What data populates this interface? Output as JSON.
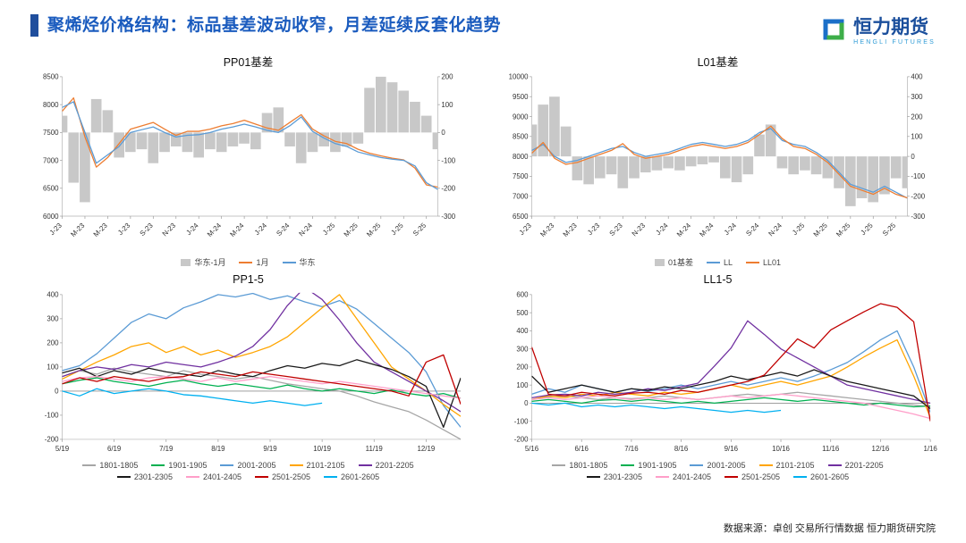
{
  "header": {
    "title": "聚烯烃价格结构：标品基差波动收窄，月差延续反套化趋势",
    "logo": {
      "name": "恒力期货",
      "subtitle": "HENGLI FUTURES"
    }
  },
  "footer": {
    "source": "数据来源：卓创  交易所行情数据  恒力期货研究院"
  },
  "chart_data": [
    {
      "type": "bar+line",
      "title": "PP01基差",
      "x_labels": [
        "J-23",
        "M-23",
        "M-23",
        "J-23",
        "S-23",
        "N-23",
        "J-24",
        "M-24",
        "M-24",
        "J-24",
        "S-24",
        "N-24",
        "J-25",
        "M-25",
        "M-25",
        "J-25",
        "S-25"
      ],
      "x_label_step": 2,
      "rotate_x_labels": true,
      "left_axis": {
        "min": 6000,
        "max": 8500,
        "step": 500
      },
      "right_axis": {
        "min": -300,
        "max": 200,
        "step": 100
      },
      "bar_series": {
        "name": "华东-1月",
        "color": "#C8C8C8",
        "axis": "right",
        "values": [
          60,
          -180,
          -250,
          120,
          80,
          -90,
          -70,
          -60,
          -110,
          -70,
          -50,
          -70,
          -90,
          -60,
          -70,
          -50,
          -40,
          -60,
          70,
          90,
          -50,
          -110,
          -70,
          -50,
          -70,
          -50,
          -40,
          160,
          200,
          180,
          150,
          110,
          60,
          -60
        ]
      },
      "series": [
        {
          "name": "1月",
          "color": "#ED7D31",
          "axis": "left",
          "values": [
            7880,
            8120,
            7420,
            6880,
            7050,
            7300,
            7560,
            7620,
            7680,
            7560,
            7450,
            7520,
            7520,
            7560,
            7620,
            7660,
            7720,
            7650,
            7580,
            7540,
            7680,
            7820,
            7560,
            7440,
            7340,
            7300,
            7200,
            7130,
            7080,
            7040,
            7010,
            6860,
            6560,
            6520
          ]
        },
        {
          "name": "华东",
          "color": "#5B9BD5",
          "axis": "left",
          "values": [
            7950,
            8050,
            7500,
            6950,
            7100,
            7250,
            7500,
            7550,
            7600,
            7500,
            7420,
            7450,
            7460,
            7500,
            7560,
            7600,
            7650,
            7600,
            7540,
            7500,
            7620,
            7780,
            7520,
            7400,
            7300,
            7250,
            7150,
            7100,
            7050,
            7020,
            7000,
            6900,
            6600,
            6480
          ]
        }
      ]
    },
    {
      "type": "bar+line",
      "title": "L01基差",
      "x_labels": [
        "J-23",
        "M-23",
        "M-23",
        "J-23",
        "S-23",
        "N-23",
        "J-24",
        "M-24",
        "M-24",
        "J-24",
        "S-24",
        "N-24",
        "J-25",
        "M-25",
        "M-25",
        "J-25",
        "S-25"
      ],
      "x_label_step": 2,
      "rotate_x_labels": true,
      "left_axis": {
        "min": 6500,
        "max": 10000,
        "step": 500
      },
      "right_axis": {
        "min": -300,
        "max": 400,
        "step": 100
      },
      "bar_series": {
        "name": "01基差",
        "color": "#C8C8C8",
        "axis": "right",
        "values": [
          160,
          260,
          300,
          150,
          -120,
          -140,
          -110,
          -90,
          -160,
          -110,
          -80,
          -70,
          -60,
          -70,
          -50,
          -40,
          -30,
          -110,
          -130,
          -90,
          110,
          160,
          -60,
          -90,
          -70,
          -90,
          -110,
          -160,
          -250,
          -210,
          -230,
          -190,
          -110,
          -160
        ]
      },
      "series": [
        {
          "name": "LL",
          "color": "#5B9BD5",
          "axis": "left",
          "values": [
            8150,
            8300,
            8000,
            7850,
            7900,
            8000,
            8100,
            8200,
            8250,
            8100,
            8000,
            8050,
            8100,
            8200,
            8300,
            8350,
            8300,
            8250,
            8300,
            8400,
            8600,
            8700,
            8400,
            8300,
            8250,
            8100,
            7900,
            7600,
            7300,
            7200,
            7100,
            7250,
            7100,
            6950
          ]
        },
        {
          "name": "LL01",
          "color": "#ED7D31",
          "axis": "left",
          "values": [
            8080,
            8350,
            7950,
            7800,
            7850,
            7950,
            8050,
            8150,
            8320,
            8050,
            7950,
            8000,
            8050,
            8150,
            8250,
            8300,
            8250,
            8200,
            8250,
            8350,
            8550,
            8760,
            8450,
            8250,
            8200,
            8050,
            7850,
            7550,
            7250,
            7150,
            7050,
            7200,
            7050,
            6960
          ]
        }
      ]
    },
    {
      "type": "line",
      "title": "PP1-5",
      "x_labels": [
        "5/19",
        "6/19",
        "7/19",
        "8/19",
        "9/19",
        "10/19",
        "11/19",
        "12/19"
      ],
      "x_label_step": 3,
      "rotate_x_labels": false,
      "left_axis": {
        "min": -200,
        "max": 400,
        "step": 100
      },
      "series": [
        {
          "name": "1801-1805",
          "color": "#A6A6A6",
          "values": [
            60,
            85,
            70,
            95,
            80,
            70,
            60,
            85,
            70,
            60,
            50,
            60,
            45,
            30,
            20,
            10,
            0,
            -20,
            -45,
            -65,
            -85,
            -120,
            -160,
            -200
          ]
        },
        {
          "name": "1901-1905",
          "color": "#00B050",
          "values": [
            30,
            45,
            55,
            40,
            30,
            20,
            35,
            45,
            30,
            20,
            30,
            20,
            10,
            25,
            10,
            0,
            10,
            0,
            -10,
            5,
            -10,
            -20,
            -10,
            -30
          ]
        },
        {
          "name": "2001-2005",
          "color": "#5B9BD5",
          "values": [
            85,
            105,
            155,
            220,
            285,
            320,
            300,
            345,
            370,
            400,
            390,
            405,
            380,
            395,
            370,
            350,
            375,
            340,
            280,
            220,
            160,
            80,
            -60,
            -150
          ]
        },
        {
          "name": "2101-2105",
          "color": "#FFA500",
          "values": [
            50,
            85,
            120,
            150,
            185,
            200,
            160,
            185,
            150,
            170,
            140,
            160,
            185,
            225,
            285,
            345,
            400,
            300,
            200,
            100,
            50,
            0,
            -55,
            -105
          ]
        },
        {
          "name": "2201-2205",
          "color": "#7030A0",
          "values": [
            60,
            85,
            100,
            90,
            110,
            100,
            120,
            110,
            100,
            120,
            145,
            185,
            255,
            355,
            430,
            380,
            295,
            200,
            120,
            80,
            40,
            0,
            -40,
            -85
          ]
        },
        {
          "name": "2301-2305",
          "color": "#1A1A1A",
          "values": [
            75,
            95,
            60,
            85,
            70,
            95,
            80,
            70,
            60,
            85,
            70,
            60,
            85,
            105,
            95,
            115,
            105,
            130,
            110,
            90,
            60,
            20,
            -150,
            55
          ]
        },
        {
          "name": "2401-2405",
          "color": "#FF9EC9",
          "values": [
            40,
            55,
            60,
            50,
            40,
            55,
            60,
            50,
            40,
            55,
            40,
            50,
            60,
            50,
            40,
            30,
            40,
            30,
            20,
            10,
            0,
            -10,
            -20,
            -30
          ]
        },
        {
          "name": "2501-2505",
          "color": "#C00000",
          "values": [
            30,
            55,
            40,
            60,
            50,
            40,
            55,
            60,
            80,
            70,
            60,
            80,
            70,
            60,
            50,
            40,
            30,
            20,
            10,
            0,
            -20,
            120,
            150,
            -55
          ]
        },
        {
          "name": "2601-2605",
          "color": "#00B0F0",
          "values": [
            0,
            -20,
            10,
            -10,
            0,
            10,
            0,
            -15,
            -20,
            -30,
            -40,
            -50,
            -40,
            -50,
            -60,
            -50,
            null,
            null,
            null,
            null,
            null,
            null,
            null,
            null
          ]
        }
      ]
    },
    {
      "type": "line",
      "title": "LL1-5",
      "x_labels": [
        "5/16",
        "6/16",
        "7/16",
        "8/16",
        "9/16",
        "10/16",
        "11/16",
        "12/16",
        "1/16"
      ],
      "x_label_step": 3,
      "rotate_x_labels": false,
      "left_axis": {
        "min": -200,
        "max": 600,
        "step": 100
      },
      "series": [
        {
          "name": "1801-1805",
          "color": "#A6A6A6",
          "values": [
            20,
            35,
            40,
            30,
            20,
            30,
            25,
            30,
            40,
            30,
            20,
            30,
            40,
            50,
            40,
            50,
            60,
            50,
            40,
            30,
            20,
            10,
            0,
            -10,
            -20
          ]
        },
        {
          "name": "1901-1905",
          "color": "#00B050",
          "values": [
            10,
            20,
            10,
            0,
            15,
            20,
            10,
            20,
            10,
            0,
            10,
            0,
            10,
            20,
            30,
            20,
            10,
            20,
            10,
            0,
            -10,
            0,
            -10,
            -20,
            -15
          ]
        },
        {
          "name": "2001-2005",
          "color": "#5B9BD5",
          "values": [
            50,
            80,
            60,
            100,
            80,
            60,
            80,
            65,
            80,
            100,
            80,
            100,
            120,
            100,
            120,
            140,
            120,
            150,
            185,
            225,
            285,
            350,
            400,
            200,
            -50
          ]
        },
        {
          "name": "2101-2105",
          "color": "#FFA500",
          "values": [
            20,
            40,
            30,
            50,
            40,
            60,
            50,
            40,
            60,
            50,
            60,
            80,
            100,
            80,
            100,
            120,
            100,
            125,
            150,
            200,
            255,
            305,
            350,
            150,
            -80
          ]
        },
        {
          "name": "2201-2205",
          "color": "#7030A0",
          "values": [
            30,
            45,
            50,
            40,
            60,
            50,
            60,
            80,
            70,
            90,
            110,
            205,
            305,
            455,
            380,
            300,
            250,
            200,
            150,
            100,
            80,
            60,
            40,
            20,
            0
          ]
        },
        {
          "name": "2301-2305",
          "color": "#1A1A1A",
          "values": [
            150,
            60,
            80,
            100,
            80,
            60,
            80,
            70,
            90,
            80,
            100,
            120,
            150,
            130,
            150,
            170,
            150,
            185,
            150,
            120,
            100,
            80,
            60,
            40,
            -30
          ]
        },
        {
          "name": "2401-2405",
          "color": "#FF9EC9",
          "values": [
            20,
            30,
            20,
            30,
            40,
            30,
            20,
            30,
            20,
            30,
            20,
            30,
            40,
            30,
            40,
            50,
            40,
            30,
            20,
            10,
            0,
            -20,
            -40,
            -60,
            -85
          ]
        },
        {
          "name": "2501-2505",
          "color": "#C00000",
          "values": [
            310,
            50,
            40,
            60,
            50,
            40,
            55,
            60,
            50,
            70,
            60,
            80,
            100,
            120,
            155,
            255,
            355,
            305,
            405,
            455,
            505,
            550,
            530,
            450,
            -100
          ]
        },
        {
          "name": "2601-2605",
          "color": "#00B0F0",
          "values": [
            0,
            -10,
            0,
            -20,
            -10,
            -20,
            -10,
            -20,
            -30,
            -20,
            -30,
            -40,
            -50,
            -40,
            -50,
            -40,
            null,
            null,
            null,
            null,
            null,
            null,
            null,
            null,
            null
          ]
        }
      ]
    }
  ]
}
